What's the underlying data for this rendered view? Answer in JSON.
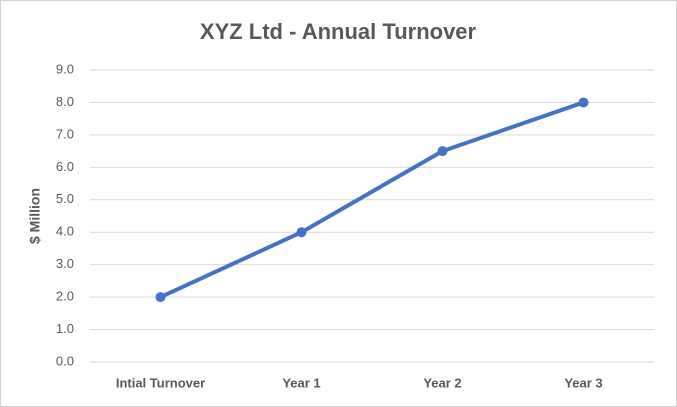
{
  "chart_data": {
    "type": "line",
    "title": "XYZ Ltd - Annual Turnover",
    "ylabel": "$ Million",
    "categories": [
      "Intial Turnover",
      "Year 1",
      "Year 2",
      "Year 3"
    ],
    "values": [
      2,
      4,
      6.5,
      8
    ],
    "color": "#4472c4",
    "ylim": [
      0,
      9
    ],
    "yticks": [
      {
        "value": 0,
        "label": "0.0"
      },
      {
        "value": 1,
        "label": "1.0"
      },
      {
        "value": 2,
        "label": "2.0"
      },
      {
        "value": 3,
        "label": "3.0"
      },
      {
        "value": 4,
        "label": "4.0"
      },
      {
        "value": 5,
        "label": "5.0"
      },
      {
        "value": 6,
        "label": "6.0"
      },
      {
        "value": 7,
        "label": "7.0"
      },
      {
        "value": 8,
        "label": "8.0"
      },
      {
        "value": 9,
        "label": "9.0"
      }
    ],
    "grid": true
  }
}
